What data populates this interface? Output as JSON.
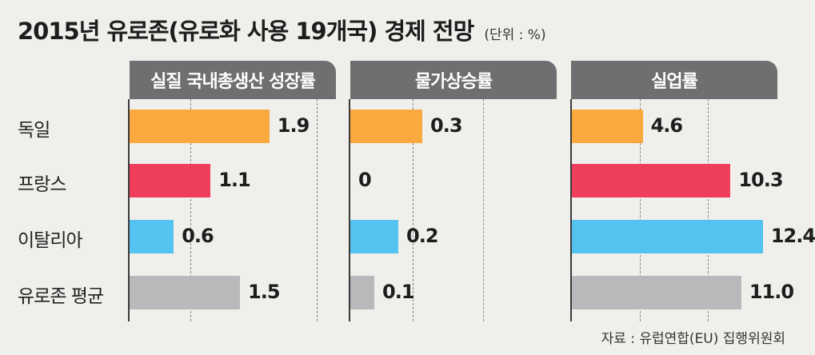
{
  "header": {
    "title": "2015년 유로존(유로화 사용 19개국) 경제 전망",
    "unit": "(단위 : %)"
  },
  "source": "자료 : 유럽연합(EU) 집행위원회",
  "colors": {
    "독일": "#f9a93d",
    "프랑스": "#ee3e5b",
    "이탈리아": "#55c3f0",
    "유로존 평균": "#b7b9ba"
  },
  "chart_data": [
    {
      "type": "bar",
      "title": "실질 국내총생산 성장률",
      "categories": [
        "독일",
        "프랑스",
        "이탈리아",
        "유로존 평균"
      ],
      "values": [
        1.9,
        1.1,
        0.6,
        1.5
      ],
      "value_labels": [
        "1.9",
        "1.1",
        "0.6",
        "1.5"
      ],
      "xlim": [
        0,
        2.5
      ],
      "grid": true
    },
    {
      "type": "bar",
      "title": "물가상승률",
      "categories": [
        "독일",
        "프랑스",
        "이탈리아",
        "유로존 평균"
      ],
      "values": [
        0.3,
        0,
        0.2,
        0.1
      ],
      "value_labels": [
        "0.3",
        "0",
        "0.2",
        "0.1"
      ],
      "xlim": [
        0,
        0.8
      ],
      "grid": true
    },
    {
      "type": "bar",
      "title": "실업률",
      "categories": [
        "독일",
        "프랑스",
        "이탈리아",
        "유로존 평균"
      ],
      "values": [
        4.6,
        10.3,
        12.4,
        11.0
      ],
      "value_labels": [
        "4.6",
        "10.3",
        "12.4",
        "11.0"
      ],
      "xlim": [
        0,
        13.5
      ],
      "grid": true
    }
  ]
}
